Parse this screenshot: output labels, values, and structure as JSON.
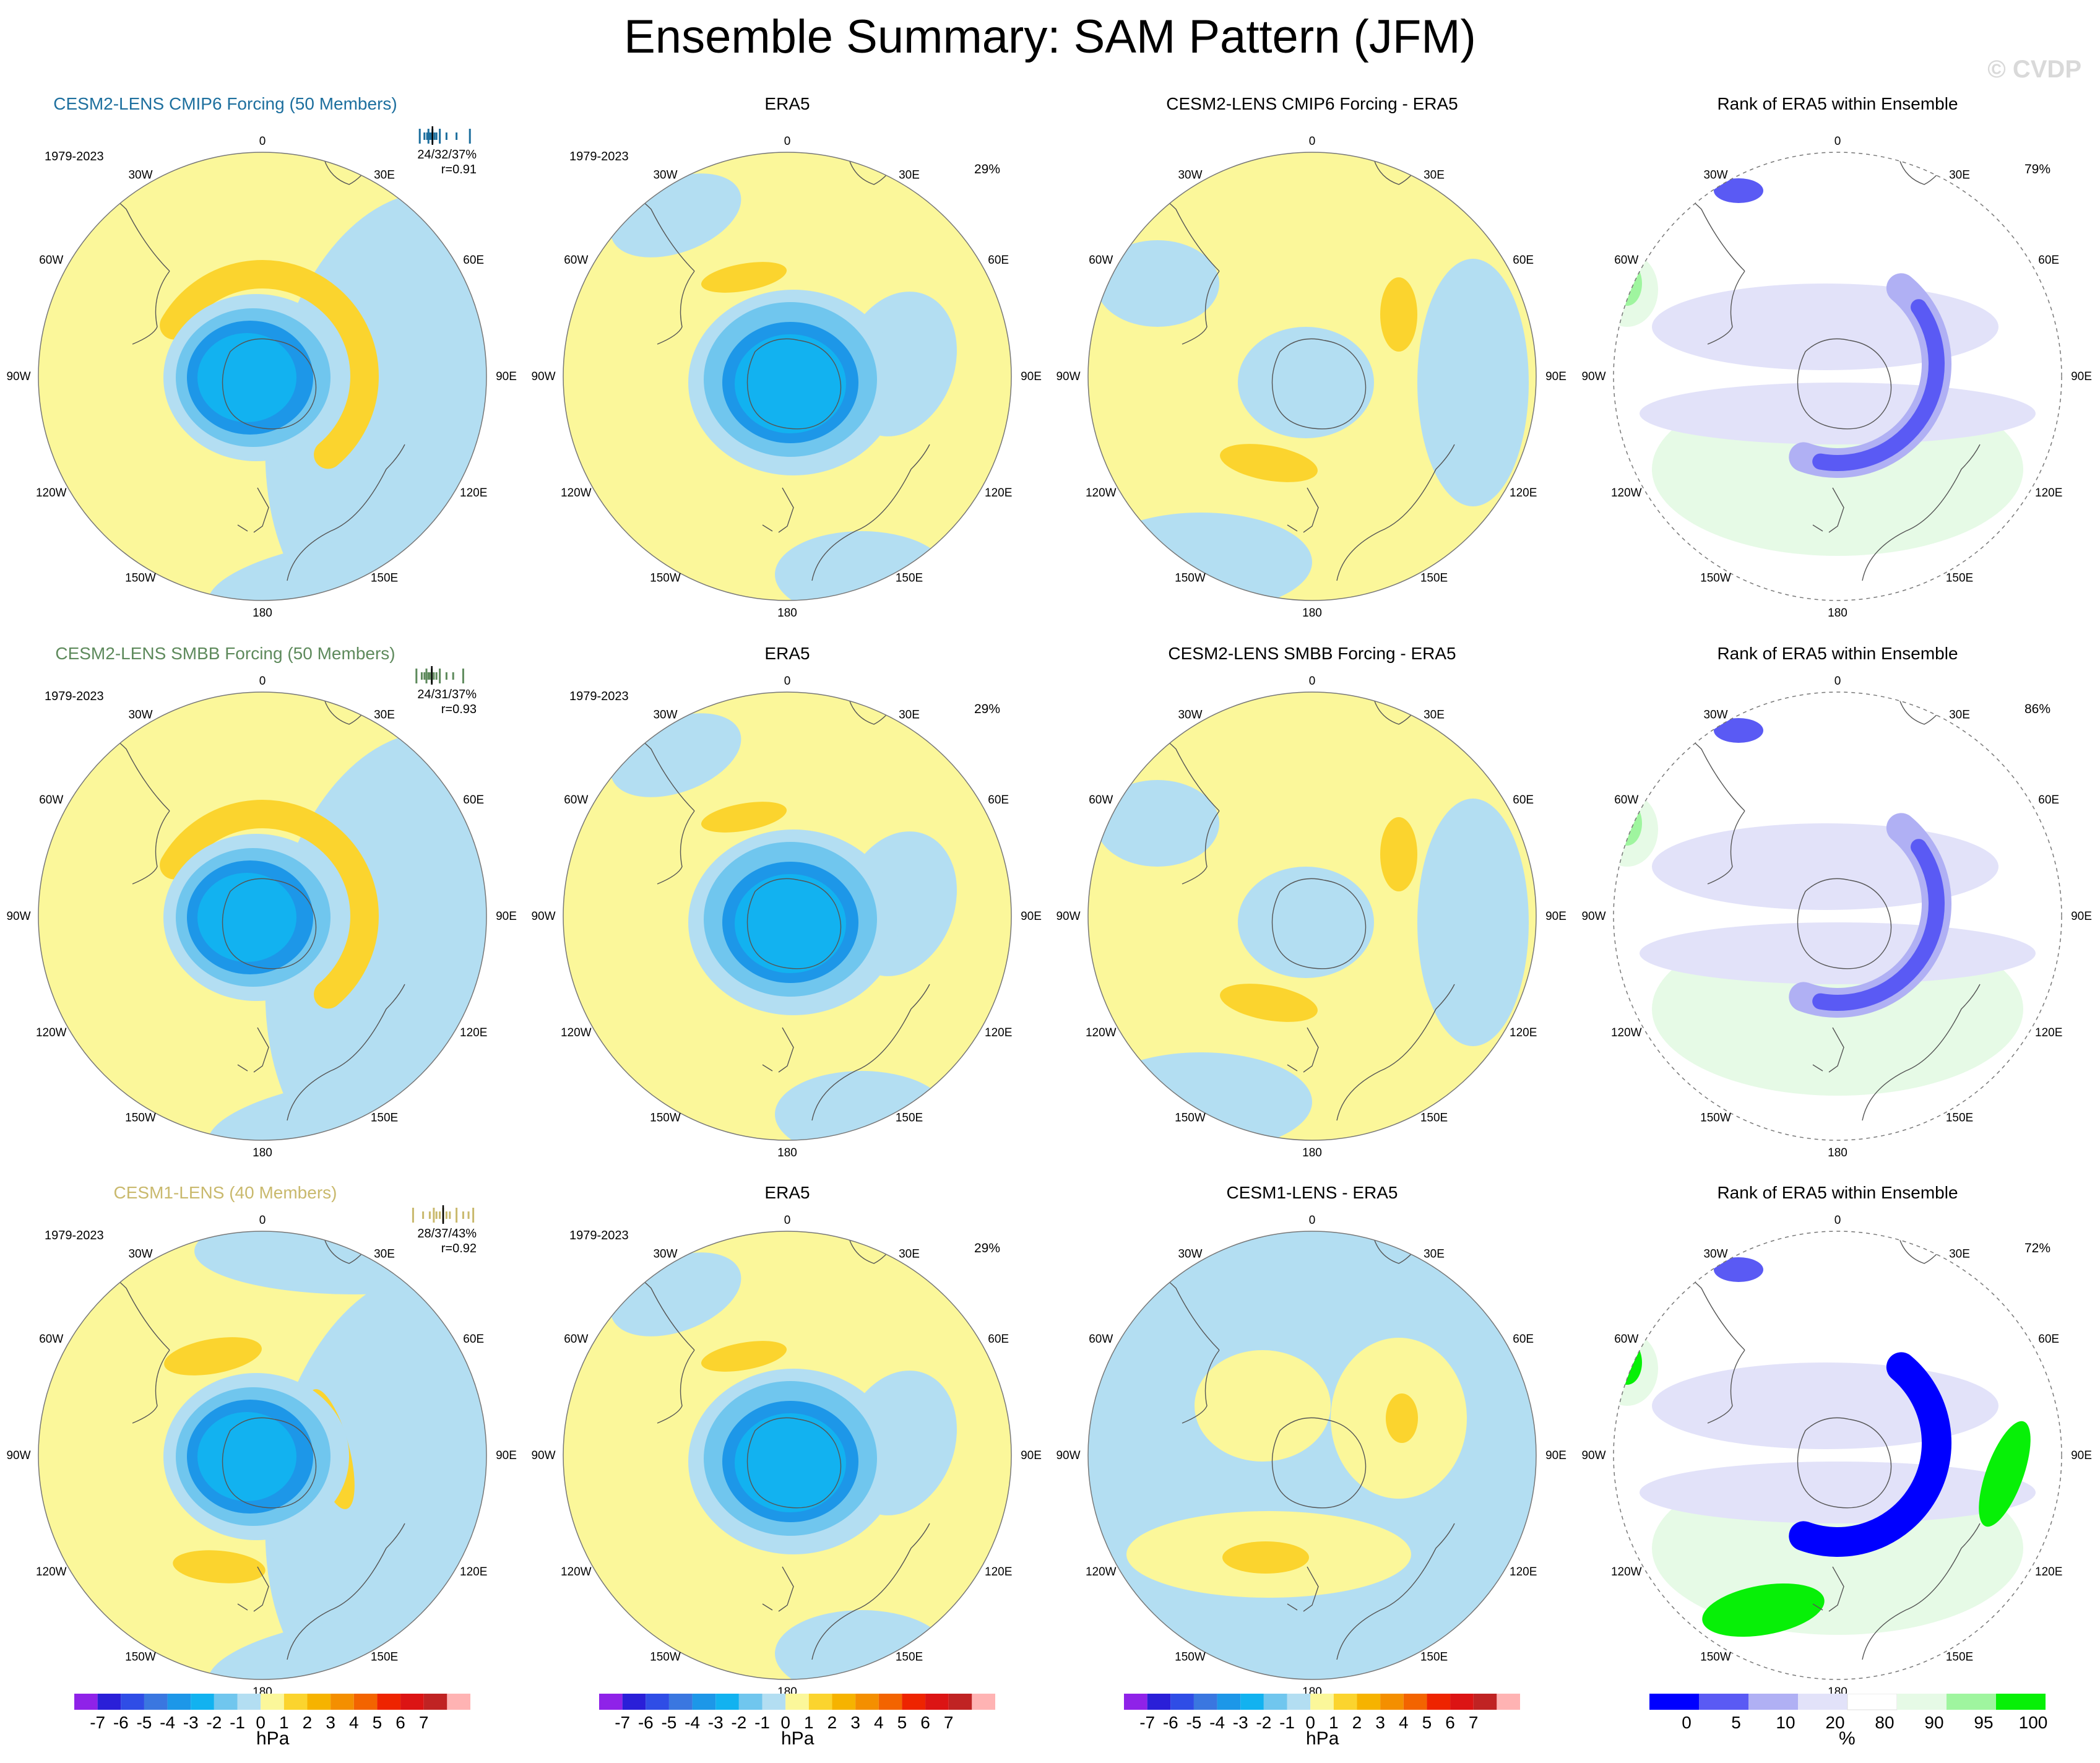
{
  "title": "Ensemble Summary: SAM Pattern (JFM)",
  "watermark": "© CVDP",
  "colors": {
    "neg7": "#8f22e8",
    "neg6": "#2a1fd8",
    "neg5": "#2f4de6",
    "neg4": "#3a77e0",
    "neg3": "#1d97e8",
    "neg2": "#12b2f0",
    "neg1": "#70c6ee",
    "neg0": "#b3def2",
    "pos0": "#fbf79a",
    "pos1": "#fbd42e",
    "pos2": "#f6b300",
    "pos3": "#f48f00",
    "pos4": "#f36400",
    "pos5": "#ee2400",
    "pos6": "#dc1414",
    "pos7": "#c02323",
    "pos8": "#ffb3b3",
    "rank0": "#0000ff",
    "rank5": "#5a5af4",
    "rank10": "#b0b0f4",
    "rank20": "#e2e2f9",
    "rank80": "#ffffff",
    "rank90": "#e6fae6",
    "rank95": "#9ff59f",
    "rank100": "#07f007",
    "cmip6": "#1d6f9e",
    "smbb": "#5e8a5c",
    "cesm1": "#c9b96d"
  },
  "rows": [
    {
      "model": {
        "title": "CESM2-LENS CMIP6 Forcing (50 Members)",
        "period": "1979-2023",
        "stats": "24/32/37%",
        "r": "r=0.91",
        "bar_values": [
          0.15,
          0.22,
          0.26,
          0.28,
          0.3,
          0.32,
          0.34,
          0.37,
          0.4,
          0.45,
          0.55,
          0.7,
          0.9
        ]
      },
      "era5": {
        "title": "ERA5",
        "period": "1979-2023",
        "pct": "29%"
      },
      "diff": {
        "title": "CESM2-LENS CMIP6 Forcing - ERA5"
      },
      "rank": {
        "title": "Rank of ERA5 within Ensemble",
        "pct": "79%"
      }
    },
    {
      "model": {
        "title": "CESM2-LENS SMBB Forcing (50 Members)",
        "period": "1979-2023",
        "stats": "24/31/37%",
        "r": "r=0.93",
        "bar_values": [
          0.1,
          0.18,
          0.22,
          0.25,
          0.28,
          0.3,
          0.33,
          0.36,
          0.4,
          0.45,
          0.55,
          0.65,
          0.8
        ]
      },
      "era5": {
        "title": "ERA5",
        "period": "1979-2023",
        "pct": "29%"
      },
      "diff": {
        "title": "CESM2-LENS SMBB Forcing - ERA5"
      },
      "rank": {
        "title": "Rank of ERA5 within Ensemble",
        "pct": "86%"
      }
    },
    {
      "model": {
        "title": "CESM1-LENS (40 Members)",
        "period": "1979-2023",
        "stats": "28/37/43%",
        "r": "r=0.92",
        "bar_values": [
          0.05,
          0.2,
          0.3,
          0.36,
          0.4,
          0.45,
          0.5,
          0.55,
          0.6,
          0.7,
          0.8,
          0.88,
          0.95
        ]
      },
      "era5": {
        "title": "ERA5",
        "period": "1979-2023",
        "pct": "29%"
      },
      "diff": {
        "title": "CESM1-LENS - ERA5"
      },
      "rank": {
        "title": "Rank of ERA5 within Ensemble",
        "pct": "72%"
      }
    }
  ],
  "map_labels": {
    "top": "0",
    "bottom": "180",
    "left": [
      "30W",
      "60W",
      "90W",
      "120W",
      "150W"
    ],
    "right": [
      "30E",
      "60E",
      "90E",
      "120E",
      "150E"
    ]
  },
  "colorbars": {
    "hpa": {
      "ticks": [
        "-7",
        "-6",
        "-5",
        "-4",
        "-3",
        "-2",
        "-1",
        "0",
        "1",
        "2",
        "3",
        "4",
        "5",
        "6",
        "7"
      ],
      "unit": "hPa"
    },
    "rank": {
      "ticks": [
        "0",
        "5",
        "10",
        "20",
        "80",
        "90",
        "95",
        "100"
      ],
      "unit": "%"
    }
  },
  "chart_data": {
    "type": "heatmap",
    "title": "Ensemble Summary: SAM Pattern (JFM)",
    "projection": "south polar stereographic",
    "period": "1979-2023",
    "panels": [
      {
        "row": 1,
        "col": 1,
        "title": "CESM2-LENS CMIP6 Forcing (50 Members)",
        "pct_variance": "24/32/37%",
        "pattern_corr": 0.91,
        "min_hpa": -4,
        "max_hpa": 2
      },
      {
        "row": 1,
        "col": 2,
        "title": "ERA5",
        "pct_variance": "29%",
        "min_hpa": -4,
        "max_hpa": 2
      },
      {
        "row": 1,
        "col": 3,
        "title": "CESM2-LENS CMIP6 Forcing - ERA5",
        "min_hpa": -1,
        "max_hpa": 2
      },
      {
        "row": 1,
        "col": 4,
        "title": "Rank of ERA5 within Ensemble",
        "pct": "79%"
      },
      {
        "row": 2,
        "col": 1,
        "title": "CESM2-LENS SMBB Forcing (50 Members)",
        "pct_variance": "24/31/37%",
        "pattern_corr": 0.93,
        "min_hpa": -4,
        "max_hpa": 2
      },
      {
        "row": 2,
        "col": 2,
        "title": "ERA5",
        "pct_variance": "29%",
        "min_hpa": -4,
        "max_hpa": 2
      },
      {
        "row": 2,
        "col": 3,
        "title": "CESM2-LENS SMBB Forcing - ERA5",
        "min_hpa": -1,
        "max_hpa": 2
      },
      {
        "row": 2,
        "col": 4,
        "title": "Rank of ERA5 within Ensemble",
        "pct": "86%"
      },
      {
        "row": 3,
        "col": 1,
        "title": "CESM1-LENS (40 Members)",
        "pct_variance": "28/37/43%",
        "pattern_corr": 0.92,
        "min_hpa": -4,
        "max_hpa": 2
      },
      {
        "row": 3,
        "col": 2,
        "title": "ERA5",
        "pct_variance": "29%",
        "min_hpa": -4,
        "max_hpa": 2
      },
      {
        "row": 3,
        "col": 3,
        "title": "CESM1-LENS - ERA5",
        "min_hpa": -1,
        "max_hpa": 2
      },
      {
        "row": 3,
        "col": 4,
        "title": "Rank of ERA5 within Ensemble",
        "pct": "72%"
      }
    ],
    "hpa_levels": [
      -7,
      -6,
      -5,
      -4,
      -3,
      -2,
      -1,
      0,
      1,
      2,
      3,
      4,
      5,
      6,
      7
    ],
    "rank_levels": [
      0,
      5,
      10,
      20,
      80,
      90,
      95,
      100
    ]
  }
}
